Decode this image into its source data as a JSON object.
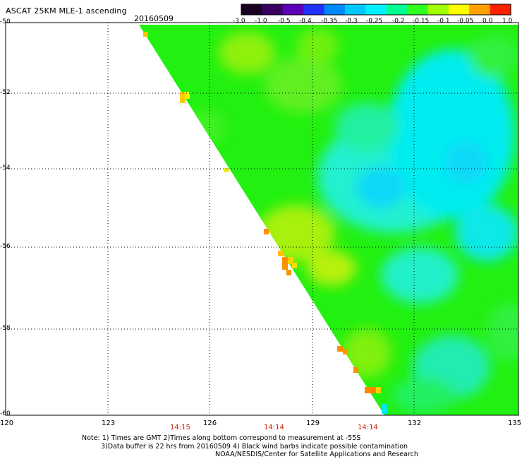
{
  "header": {
    "title": "ASCAT 25KM MLE-1 ascending",
    "date": "20160509"
  },
  "colorbar": {
    "labels": [
      "-3.0",
      "-1.0",
      "-0.5",
      "-0.4",
      "-0.35",
      "-0.3",
      "-0.25",
      "-0.2",
      "-0.15",
      "-0.1",
      "-0.05",
      "0.0",
      "1.0"
    ],
    "colors": [
      "#1a0020",
      "#3a0060",
      "#5a00b8",
      "#2030ff",
      "#0088ff",
      "#00c8ff",
      "#00f0ff",
      "#00ff90",
      "#30ff20",
      "#a0ff00",
      "#ffff00",
      "#ffa000",
      "#ff2000"
    ]
  },
  "axes": {
    "lat_labels": [
      "-50",
      "-52",
      "-54",
      "-56",
      "-58",
      "-60"
    ],
    "lon_labels": [
      "120",
      "123",
      "126",
      "129",
      "132",
      "135"
    ]
  },
  "time_labels": [
    "14:15",
    "14:14",
    "14:14"
  ],
  "notes": [
    "Note: 1) Times are GMT 2)Times along bottom correspond to measurement at -55S",
    "3)Data buffer is 22 hrs from 20160509 4) Black wind barbs indicate possible contamination",
    "NOAA/NESDIS/Center for Satellite Applications and Research"
  ]
}
